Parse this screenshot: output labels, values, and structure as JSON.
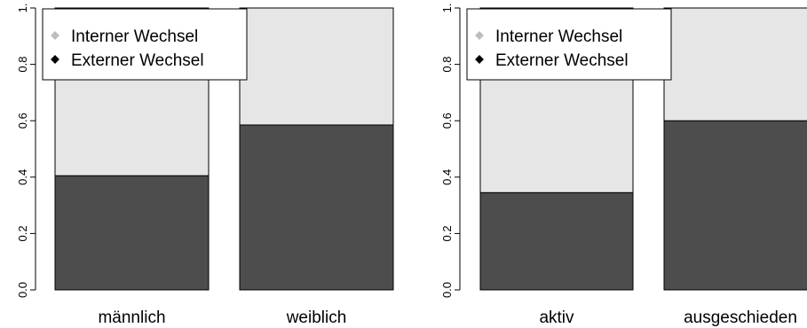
{
  "chart_data": [
    {
      "type": "bar",
      "stacked": true,
      "categories": [
        "männlich",
        "weiblich"
      ],
      "series": [
        {
          "name": "Externer Wechsel",
          "color": "#4d4d4d",
          "values": [
            0.405,
            0.585
          ]
        },
        {
          "name": "Interner Wechsel",
          "color": "#e6e6e6",
          "values": [
            0.595,
            0.415
          ]
        }
      ],
      "yticks": [
        "0.0",
        "0.2",
        "0.4",
        "0.6",
        "0.8",
        "1."
      ],
      "ylim": [
        0,
        1
      ],
      "legend": {
        "placement": "top-left",
        "items": [
          "Interner Wechsel",
          "Externer Wechsel"
        ],
        "marker_colors": [
          "#bebebe",
          "#000000"
        ]
      }
    },
    {
      "type": "bar",
      "stacked": true,
      "categories": [
        "aktiv",
        "ausgeschieden"
      ],
      "series": [
        {
          "name": "Externer Wechsel",
          "color": "#4d4d4d",
          "values": [
            0.345,
            0.6
          ]
        },
        {
          "name": "Interner Wechsel",
          "color": "#e6e6e6",
          "values": [
            0.655,
            0.4
          ]
        }
      ],
      "yticks": [
        "0.0",
        "0.2",
        "0.4",
        "0.6",
        "0.8",
        "1."
      ],
      "ylim": [
        0,
        1
      ],
      "legend": {
        "placement": "top-left",
        "items": [
          "Interner Wechsel",
          "Externer Wechsel"
        ],
        "marker_colors": [
          "#bebebe",
          "#000000"
        ]
      }
    }
  ]
}
